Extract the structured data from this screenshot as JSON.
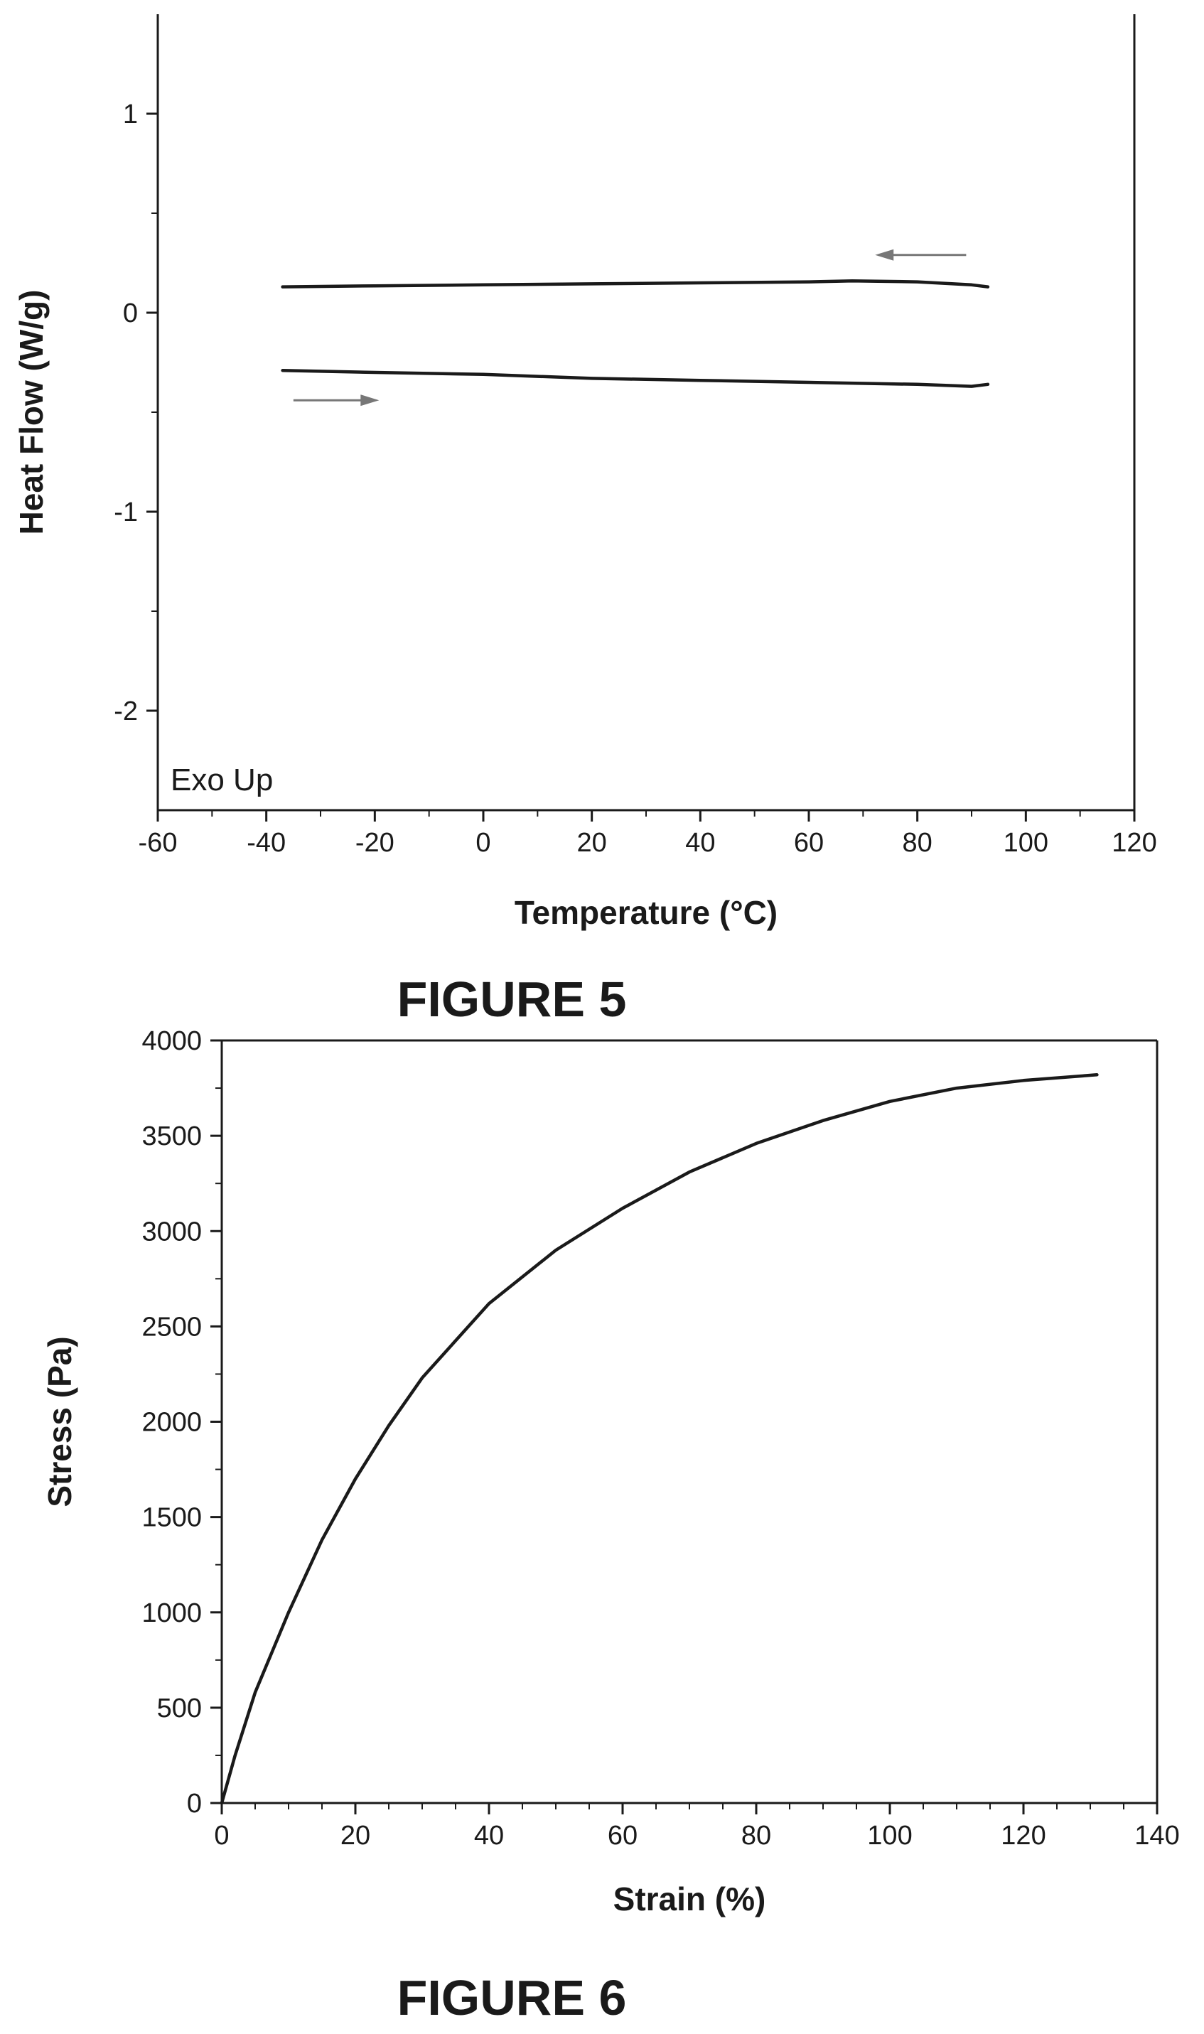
{
  "figures": [
    {
      "caption": "FIGURE 5",
      "chart_data": {
        "type": "line",
        "xlabel": "Temperature (°C)",
        "ylabel": "Heat Flow (W/g)",
        "xlim": [
          -60,
          120
        ],
        "ylim": [
          -2.5,
          1.5
        ],
        "xticks": [
          -60,
          -40,
          -20,
          0,
          20,
          40,
          60,
          80,
          100,
          120
        ],
        "yticks": [
          -2,
          -1,
          0,
          1
        ],
        "annotation": "Exo Up",
        "grid": false,
        "series": [
          {
            "direction": "cooling",
            "color": "#1a1a1a",
            "x": [
              -37,
              -20,
              0,
              20,
              40,
              60,
              68,
              80,
              90,
              93
            ],
            "y": [
              0.13,
              0.135,
              0.14,
              0.145,
              0.15,
              0.155,
              0.16,
              0.155,
              0.14,
              0.13
            ]
          },
          {
            "direction": "heating",
            "color": "#1a1a1a",
            "x": [
              -37,
              -20,
              0,
              20,
              40,
              60,
              80,
              90,
              93
            ],
            "y": [
              -0.29,
              -0.3,
              -0.31,
              -0.33,
              -0.34,
              -0.35,
              -0.36,
              -0.37,
              -0.36
            ]
          }
        ],
        "arrows": [
          {
            "direction": "left",
            "x": [
              89,
              73
            ],
            "y": 0.29,
            "color": "#777777"
          },
          {
            "direction": "right",
            "x": [
              -35,
              -20
            ],
            "y": -0.44,
            "color": "#777777"
          }
        ]
      }
    },
    {
      "caption": "FIGURE 6",
      "chart_data": {
        "type": "line",
        "xlabel": "Strain (%)",
        "ylabel": "Stress (Pa)",
        "xlim": [
          0,
          140
        ],
        "ylim": [
          0,
          4000
        ],
        "xticks": [
          0,
          20,
          40,
          60,
          80,
          100,
          120,
          140
        ],
        "yticks": [
          0,
          500,
          1000,
          1500,
          2000,
          2500,
          3000,
          3500,
          4000
        ],
        "grid": false,
        "series": [
          {
            "color": "#1a1a1a",
            "x": [
              0,
              2,
              5,
              10,
              15,
              20,
              25,
              30,
              40,
              50,
              60,
              70,
              80,
              90,
              100,
              110,
              120,
              131
            ],
            "y": [
              0,
              250,
              580,
              1000,
              1380,
              1700,
              1980,
              2230,
              2620,
              2900,
              3120,
              3310,
              3460,
              3580,
              3680,
              3750,
              3790,
              3820
            ]
          }
        ]
      }
    }
  ]
}
